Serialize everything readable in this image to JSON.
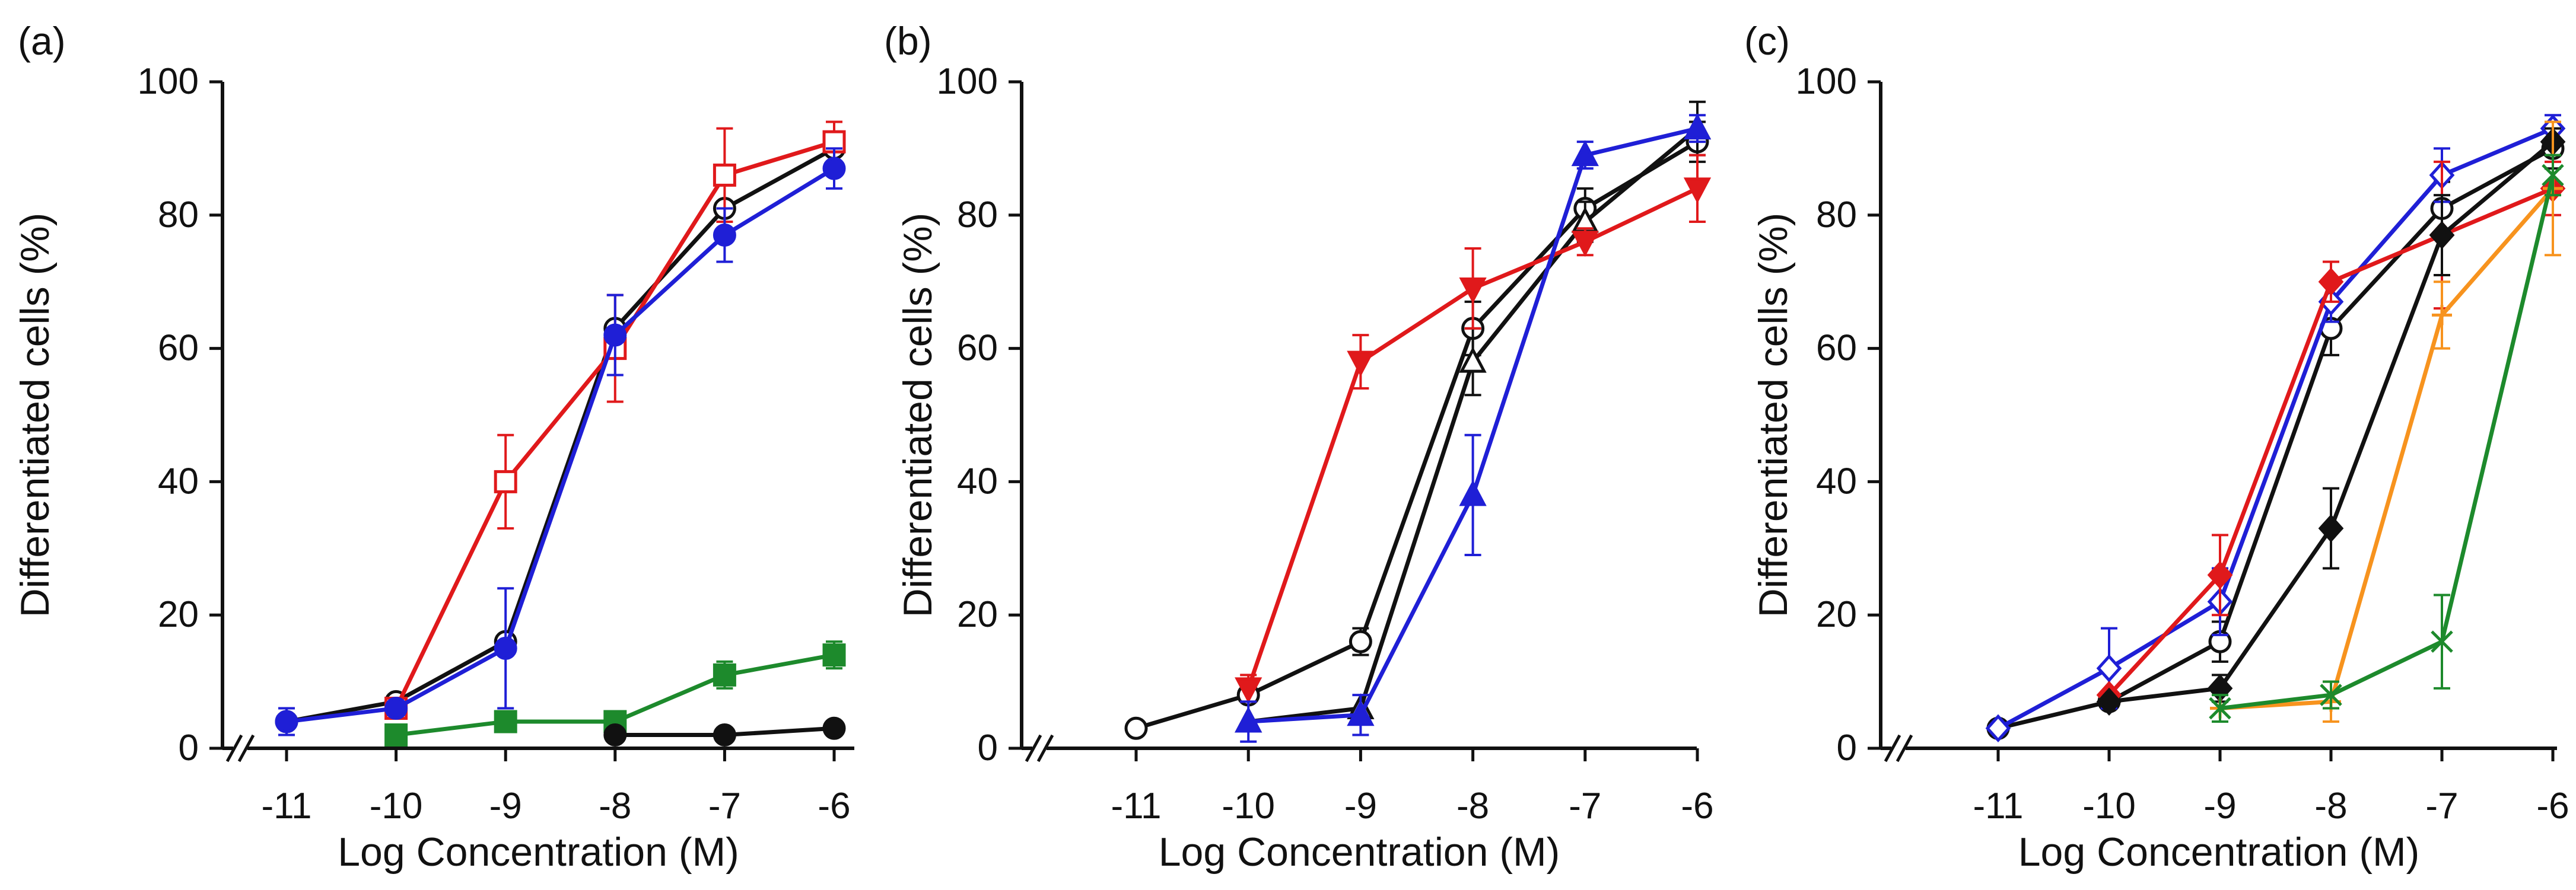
{
  "colors": {
    "black": "#111111",
    "red": "#e0191b",
    "blue": "#1f1fd6",
    "green": "#1d8a2c",
    "orange": "#f7931e"
  },
  "chart_data": [
    {
      "panel": "(a)",
      "type": "line",
      "xlabel": "Log Concentration (M)",
      "ylabel": "Differentiated cells (%)",
      "x_ticks": [
        "-11",
        "-10",
        "-9",
        "-8",
        "-7",
        "-6"
      ],
      "y_ticks": [
        "0",
        "20",
        "40",
        "60",
        "80",
        "100"
      ],
      "xlim": [
        -11.5,
        -6
      ],
      "ylim": [
        0,
        100
      ],
      "axis_break": true,
      "series": [
        {
          "name": "black open circle",
          "color": "#111111",
          "marker": "circle",
          "filled": false,
          "x": [
            -11,
            -10,
            -9,
            -8,
            -7,
            -6
          ],
          "y": [
            4,
            7,
            16,
            63,
            81,
            90
          ],
          "err": [
            0,
            0,
            0,
            0,
            0,
            0
          ]
        },
        {
          "name": "red open square",
          "color": "#e0191b",
          "marker": "square",
          "filled": false,
          "x": [
            -10,
            -9,
            -8,
            -7,
            -6
          ],
          "y": [
            6,
            40,
            60,
            86,
            91
          ],
          "err": [
            0,
            7,
            8,
            7,
            3
          ]
        },
        {
          "name": "blue filled circle",
          "color": "#1f1fd6",
          "marker": "circle",
          "filled": true,
          "x": [
            -11,
            -10,
            -9,
            -8,
            -7,
            -6
          ],
          "y": [
            4,
            6,
            15,
            62,
            77,
            87
          ],
          "err": [
            2,
            0,
            9,
            6,
            4,
            3
          ]
        },
        {
          "name": "green filled square",
          "color": "#1d8a2c",
          "marker": "square",
          "filled": true,
          "x": [
            -10,
            -9,
            -8,
            -7,
            -6
          ],
          "y": [
            2,
            4,
            4,
            11,
            14
          ],
          "err": [
            1,
            1,
            1,
            2,
            2
          ]
        },
        {
          "name": "black filled circle",
          "color": "#111111",
          "marker": "circle",
          "filled": true,
          "x": [
            -8,
            -7,
            -6
          ],
          "y": [
            2,
            2,
            3
          ],
          "err": [
            0,
            0,
            0
          ]
        }
      ]
    },
    {
      "panel": "(b)",
      "type": "line",
      "xlabel": "Log Concentration (M)",
      "ylabel": "Differentiated cells (%)",
      "x_ticks": [
        "-11",
        "-10",
        "-9",
        "-8",
        "-7",
        "-6"
      ],
      "y_ticks": [
        "0",
        "20",
        "40",
        "60",
        "80",
        "100"
      ],
      "xlim": [
        -11.5,
        -6
      ],
      "ylim": [
        0,
        100
      ],
      "axis_break": true,
      "series": [
        {
          "name": "black open circle",
          "color": "#111111",
          "marker": "circle",
          "filled": false,
          "x": [
            -11,
            -10,
            -9,
            -8,
            -7,
            -6
          ],
          "y": [
            3,
            8,
            16,
            63,
            81,
            91
          ],
          "err": [
            0,
            0,
            2,
            4,
            3,
            3
          ]
        },
        {
          "name": "black open triangle",
          "color": "#111111",
          "marker": "triangle",
          "filled": false,
          "x": [
            -10,
            -9,
            -8,
            -7,
            -6
          ],
          "y": [
            4,
            6,
            58,
            79,
            93
          ],
          "err": [
            0,
            0,
            5,
            3,
            4
          ]
        },
        {
          "name": "red filled down-triangle",
          "color": "#e0191b",
          "marker": "triangle-down",
          "filled": true,
          "x": [
            -10,
            -9,
            -8,
            -7,
            -6
          ],
          "y": [
            9,
            58,
            69,
            76,
            84
          ],
          "err": [
            2,
            4,
            6,
            2,
            5
          ]
        },
        {
          "name": "blue filled triangle",
          "color": "#1f1fd6",
          "marker": "triangle",
          "filled": true,
          "x": [
            -10,
            -9,
            -8,
            -7,
            -6
          ],
          "y": [
            4,
            5,
            38,
            89,
            93
          ],
          "err": [
            3,
            3,
            9,
            2,
            2
          ]
        }
      ]
    },
    {
      "panel": "(c)",
      "type": "line",
      "xlabel": "Log Concentration (M)",
      "ylabel": "Differentiated cells (%)",
      "x_ticks": [
        "-11",
        "-10",
        "-9",
        "-8",
        "-7",
        "-6"
      ],
      "y_ticks": [
        "0",
        "20",
        "40",
        "60",
        "80",
        "100"
      ],
      "xlim": [
        -11.5,
        -6
      ],
      "ylim": [
        0,
        100
      ],
      "axis_break": true,
      "series": [
        {
          "name": "black open circle",
          "color": "#111111",
          "marker": "circle",
          "filled": false,
          "x": [
            -11,
            -10,
            -9,
            -8,
            -7,
            -6
          ],
          "y": [
            3,
            7,
            16,
            63,
            81,
            90
          ],
          "err": [
            0,
            0,
            3,
            4,
            4,
            3
          ]
        },
        {
          "name": "blue open diamond",
          "color": "#1f1fd6",
          "marker": "diamond",
          "filled": false,
          "x": [
            -11,
            -10,
            -9,
            -8,
            -7,
            -6
          ],
          "y": [
            3,
            12,
            22,
            67,
            86,
            93
          ],
          "err": [
            0,
            6,
            5,
            3,
            4,
            2
          ]
        },
        {
          "name": "red filled diamond",
          "color": "#e0191b",
          "marker": "diamond",
          "filled": true,
          "x": [
            -10,
            -9,
            -8,
            -7,
            -6
          ],
          "y": [
            8,
            26,
            70,
            77,
            84
          ],
          "err": [
            0,
            6,
            3,
            11,
            4
          ]
        },
        {
          "name": "black filled diamond",
          "color": "#111111",
          "marker": "diamond",
          "filled": true,
          "x": [
            -10,
            -9,
            -8,
            -7,
            -6
          ],
          "y": [
            7,
            9,
            33,
            77,
            91
          ],
          "err": [
            0,
            2,
            6,
            6,
            2
          ]
        },
        {
          "name": "orange plus",
          "color": "#f7931e",
          "marker": "plus",
          "filled": false,
          "x": [
            -9,
            -8,
            -7,
            -6
          ],
          "y": [
            6,
            7,
            65,
            84
          ],
          "err": [
            0,
            3,
            5,
            10
          ]
        },
        {
          "name": "green cross",
          "color": "#1d8a2c",
          "marker": "cross",
          "filled": false,
          "x": [
            -9,
            -8,
            -7,
            -6
          ],
          "y": [
            6,
            8,
            16,
            86
          ],
          "err": [
            2,
            2,
            7,
            3
          ]
        }
      ]
    }
  ]
}
